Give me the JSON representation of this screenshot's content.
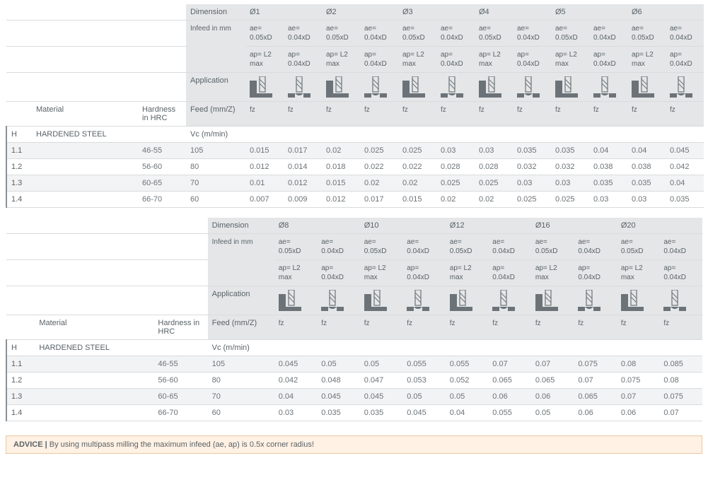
{
  "labels": {
    "dimension": "Dimension",
    "infeed": "Infeed in mm",
    "application": "Application",
    "feed": "Feed (mm/Z)",
    "material": "Material",
    "hardness": "Hardness in HRC",
    "vc": "Vc (m/min)",
    "ae1": "ae= 0.05xD",
    "ae2": "ae= 0.04xD",
    "ap1": "ap= L2 max",
    "ap2": "ap= 0.04xD",
    "fz": "fz",
    "advice_label": "ADVICE",
    "advice_text": "By using multipass milling the maximum infeed (ae, ap) is 0.5x corner radius!"
  },
  "group": {
    "code": "H",
    "material": "HARDENED STEEL"
  },
  "colors": {
    "header_bg": "#e4e6e7",
    "row_alt": "#f2f3f4",
    "border": "#d9dbdc",
    "text": "#6c7378",
    "text_strong": "#5a6267",
    "advice_bg": "#fff1e3",
    "advice_border": "#e7c9a4",
    "left_bar": "#8a9196",
    "icon_fill": "#6c7378"
  },
  "tables": [
    {
      "diameters": [
        "Ø1",
        "Ø2",
        "Ø3",
        "Ø4",
        "Ø5",
        "Ø6"
      ],
      "rows": [
        {
          "id": "1.1",
          "hrc": "46-55",
          "vc": "105",
          "fz": [
            "0.015",
            "0.017",
            "0.02",
            "0.025",
            "0.025",
            "0.03",
            "0.03",
            "0.035",
            "0.035",
            "0.04",
            "0.04",
            "0.045"
          ]
        },
        {
          "id": "1.2",
          "hrc": "56-60",
          "vc": "80",
          "fz": [
            "0.012",
            "0.014",
            "0.018",
            "0.022",
            "0.022",
            "0.028",
            "0.028",
            "0.032",
            "0.032",
            "0.038",
            "0.038",
            "0.042"
          ]
        },
        {
          "id": "1.3",
          "hrc": "60-65",
          "vc": "70",
          "fz": [
            "0.01",
            "0.012",
            "0.015",
            "0.02",
            "0.02",
            "0.025",
            "0.025",
            "0.03",
            "0.03",
            "0.035",
            "0.035",
            "0.04"
          ]
        },
        {
          "id": "1.4",
          "hrc": "66-70",
          "vc": "60",
          "fz": [
            "0.007",
            "0.009",
            "0.012",
            "0.017",
            "0.015",
            "0.02",
            "0.02",
            "0.025",
            "0.025",
            "0.03",
            "0.03",
            "0.035"
          ]
        }
      ]
    },
    {
      "diameters": [
        "Ø8",
        "Ø10",
        "Ø12",
        "Ø16",
        "Ø20"
      ],
      "rows": [
        {
          "id": "1.1",
          "hrc": "46-55",
          "vc": "105",
          "fz": [
            "0.045",
            "0.05",
            "0.05",
            "0.055",
            "0.055",
            "0.07",
            "0.07",
            "0.075",
            "0.08",
            "0.085"
          ]
        },
        {
          "id": "1.2",
          "hrc": "56-60",
          "vc": "80",
          "fz": [
            "0.042",
            "0.048",
            "0.047",
            "0.053",
            "0.052",
            "0.065",
            "0.065",
            "0.07",
            "0.075",
            "0.08"
          ]
        },
        {
          "id": "1.3",
          "hrc": "60-65",
          "vc": "70",
          "fz": [
            "0.04",
            "0.045",
            "0.045",
            "0.05",
            "0.05",
            "0.06",
            "0.06",
            "0.065",
            "0.07",
            "0.075"
          ]
        },
        {
          "id": "1.4",
          "hrc": "66-70",
          "vc": "60",
          "fz": [
            "0.03",
            "0.035",
            "0.035",
            "0.045",
            "0.04",
            "0.055",
            "0.05",
            "0.06",
            "0.06",
            "0.07"
          ]
        }
      ]
    }
  ]
}
